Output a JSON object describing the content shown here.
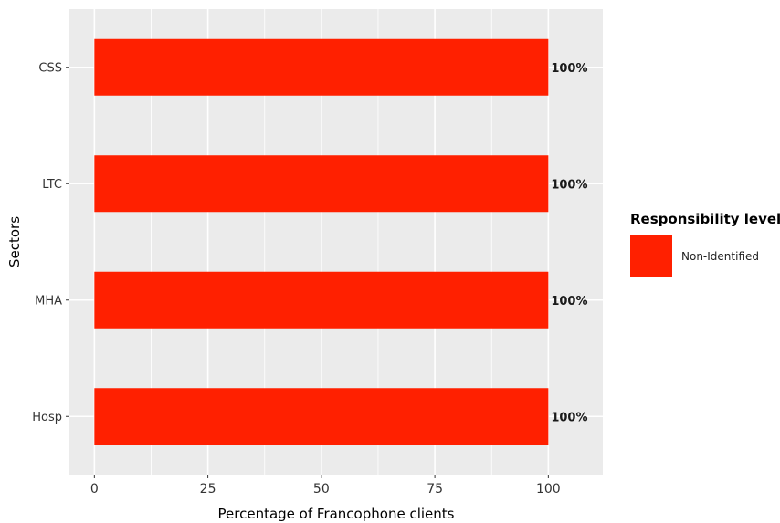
{
  "chart_data": {
    "type": "bar",
    "orientation": "horizontal",
    "categories": [
      "CSS",
      "LTC",
      "MHA",
      "Hosp"
    ],
    "series": [
      {
        "name": "Non-Identified",
        "values": [
          100,
          100,
          100,
          100
        ],
        "color": "#ff2000"
      }
    ],
    "data_labels": [
      "100%",
      "100%",
      "100%",
      "100%"
    ],
    "xlabel": "Percentage of Francophone clients",
    "ylabel": "Sectors",
    "xlim": [
      -5.5,
      112
    ],
    "x_ticks": [
      0,
      25,
      50,
      75,
      100
    ],
    "grid": true,
    "panel_background": "#ebebeb",
    "legend": {
      "title": "Responsibility level",
      "placement": "right",
      "entries": [
        {
          "label": "Non-Identified",
          "color": "#ff2000"
        }
      ]
    }
  }
}
